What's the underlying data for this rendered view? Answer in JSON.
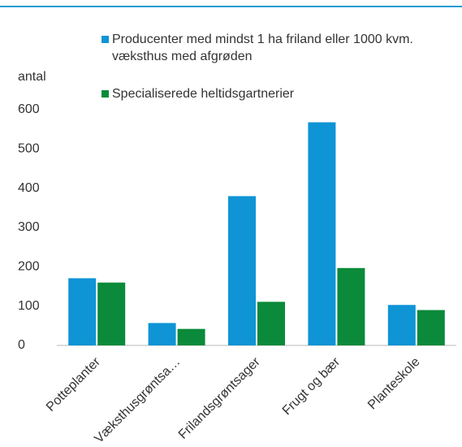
{
  "chart_data": {
    "type": "bar",
    "y_label": "antal",
    "categories": [
      "Potteplanter",
      "Væksthusgrøntsa…",
      "Frilandsgrøntsager",
      "Frugt og bær",
      "Planteskole"
    ],
    "series": [
      {
        "name": "Producenter med mindst 1 ha friland eller 1000 kvm. væksthus med afgrøden",
        "color": "#0f94d6",
        "values": [
          171,
          57,
          380,
          568,
          103
        ]
      },
      {
        "name": "Specialiserede heltidsgartnerier",
        "color": "#0a8a3a",
        "values": [
          160,
          42,
          111,
          197,
          90
        ]
      }
    ],
    "ylim": [
      0,
      600
    ],
    "yticks": [
      0,
      100,
      200,
      300,
      400,
      500,
      600
    ],
    "grid": false
  }
}
